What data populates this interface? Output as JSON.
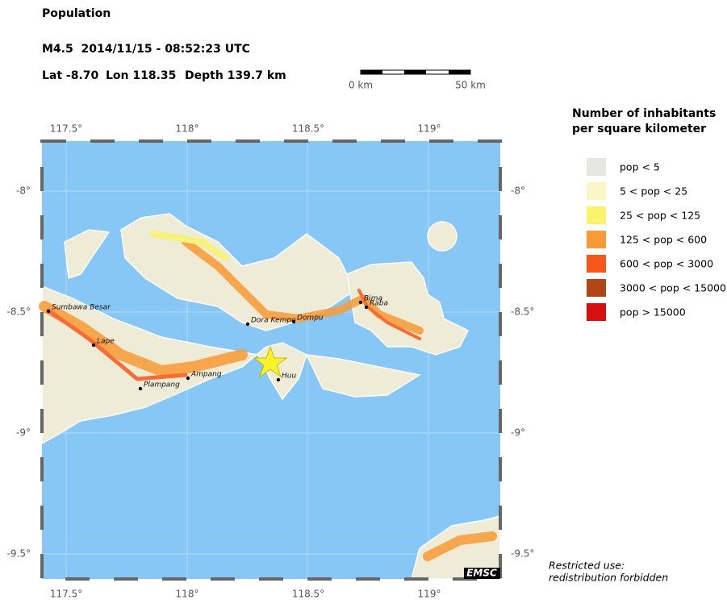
{
  "header": {
    "title": "Population",
    "event": "M4.5  2014/11/15 - 08:52:23 UTC",
    "lat": "Lat -8.70",
    "lon": "Lon 118.35",
    "depth": "Depth 139.7 km"
  },
  "scale_bar": {
    "start": "0 km",
    "end": "50 km"
  },
  "map": {
    "x_ticks": [
      "117.5°",
      "118°",
      "118.5°",
      "119°"
    ],
    "y_ticks": [
      "-8°",
      "-8.5°",
      "-9°",
      "-9.5°"
    ],
    "places": [
      "Sumbawa Besar",
      "Lape",
      "Plampang",
      "Ampang",
      "Dora Kempo",
      "Dompu",
      "Bima",
      "Raba",
      "Huu"
    ],
    "credit": "EMSC"
  },
  "legend": {
    "title": [
      "Number of inhabitants",
      "per square kilometer"
    ],
    "items": [
      {
        "label": "pop < 5",
        "color": "#e6e6e3"
      },
      {
        "label": "5 < pop < 25",
        "color": "#fbf6c4"
      },
      {
        "label": "25 < pop < 125",
        "color": "#f9f46a"
      },
      {
        "label": "125 < pop < 600",
        "color": "#f99a35"
      },
      {
        "label": "600 < pop < 3000",
        "color": "#f9561a"
      },
      {
        "label": "3000 < pop < 15000",
        "color": "#b24515"
      },
      {
        "label": "pop > 15000",
        "color": "#d80f0f"
      }
    ]
  },
  "footer": [
    "Restricted use:",
    "redistribution forbidden"
  ]
}
